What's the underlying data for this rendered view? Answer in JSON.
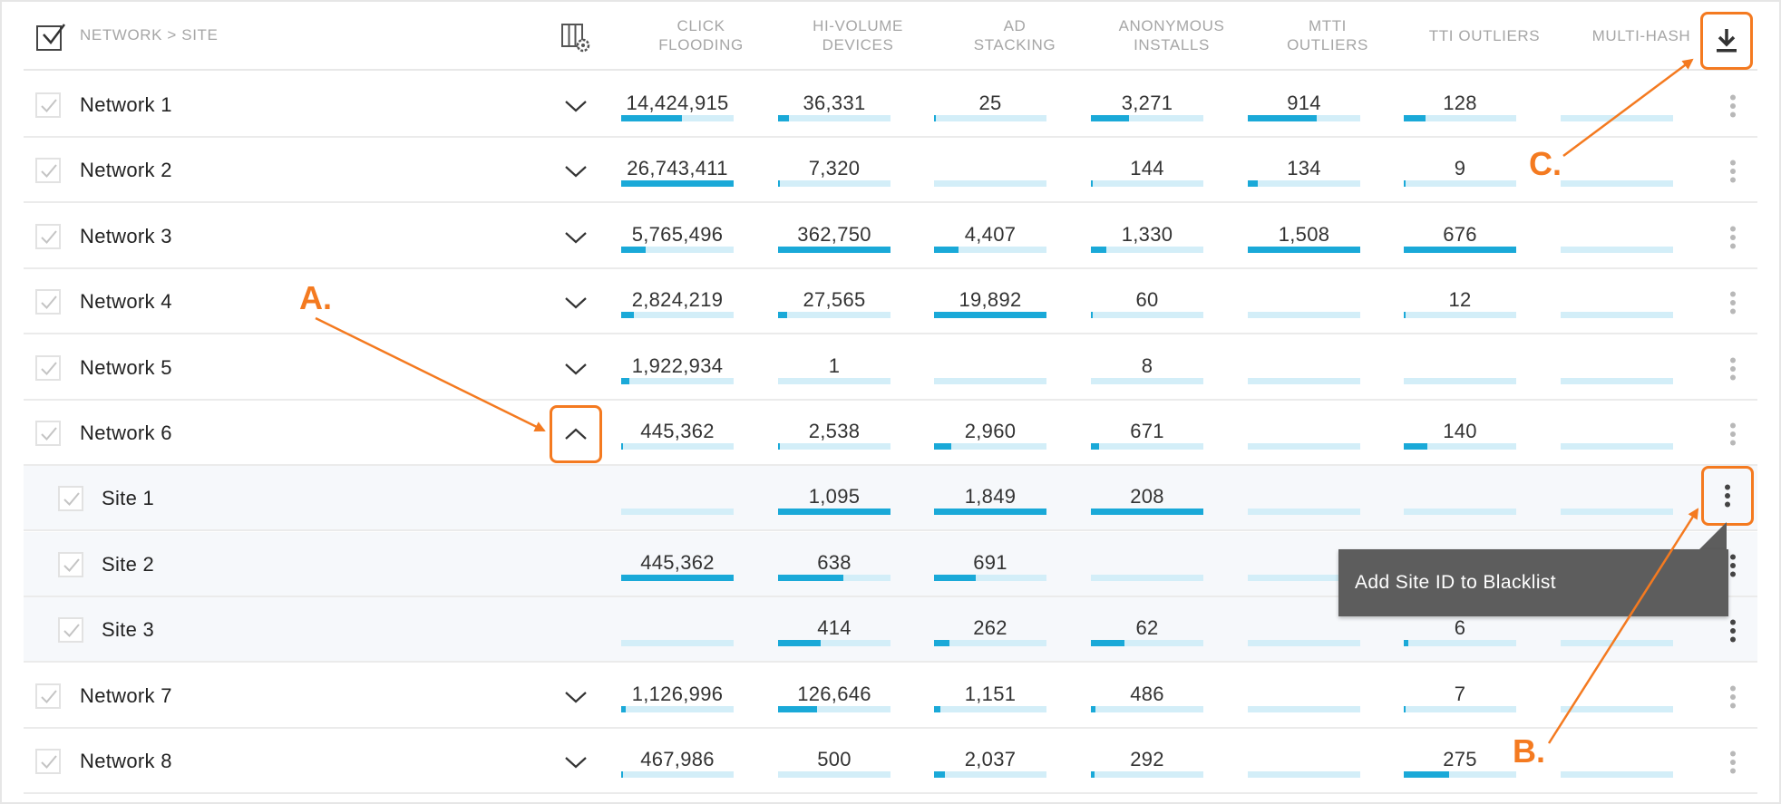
{
  "header": {
    "title": "NETWORK > SITE",
    "columns": [
      {
        "label": "CLICK\nFLOODING"
      },
      {
        "label": "HI-VOLUME\nDEVICES"
      },
      {
        "label": "AD\nSTACKING"
      },
      {
        "label": "ANONYMOUS\nINSTALLS"
      },
      {
        "label": "MTTI\nOUTLIERS"
      },
      {
        "label": "TTI OUTLIERS"
      },
      {
        "label": "MULTI-HASH"
      }
    ]
  },
  "icons": {
    "header_checkbox": "checkbox-checked-icon",
    "column_settings": "column-settings-icon",
    "download": "download-icon",
    "row_menu": "kebab-menu-icon",
    "expand": "chevron-down-icon",
    "collapse": "chevron-up-icon"
  },
  "colors": {
    "bar_fill": "#1aa9d8",
    "bar_track": "#d3eef8",
    "annotation": "#f47a20",
    "tooltip_bg": "#5d5d5d"
  },
  "rows": [
    {
      "name": "Network 1",
      "type": "network",
      "expanded": false,
      "cells": [
        {
          "value": "14,424,915",
          "fill": 0.54
        },
        {
          "value": "36,331",
          "fill": 0.1
        },
        {
          "value": "25",
          "fill": 0.01
        },
        {
          "value": "3,271",
          "fill": 0.34
        },
        {
          "value": "914",
          "fill": 0.61
        },
        {
          "value": "128",
          "fill": 0.19
        },
        {
          "value": "",
          "fill": 0
        }
      ]
    },
    {
      "name": "Network 2",
      "type": "network",
      "expanded": false,
      "cells": [
        {
          "value": "26,743,411",
          "fill": 1.0
        },
        {
          "value": "7,320",
          "fill": 0.02
        },
        {
          "value": "",
          "fill": 0
        },
        {
          "value": "144",
          "fill": 0.01
        },
        {
          "value": "134",
          "fill": 0.09
        },
        {
          "value": "9",
          "fill": 0.01
        },
        {
          "value": "",
          "fill": 0
        }
      ]
    },
    {
      "name": "Network 3",
      "type": "network",
      "expanded": false,
      "cells": [
        {
          "value": "5,765,496",
          "fill": 0.22
        },
        {
          "value": "362,750",
          "fill": 1.0
        },
        {
          "value": "4,407",
          "fill": 0.22
        },
        {
          "value": "1,330",
          "fill": 0.14
        },
        {
          "value": "1,508",
          "fill": 1.0
        },
        {
          "value": "676",
          "fill": 1.0
        },
        {
          "value": "",
          "fill": 0
        }
      ]
    },
    {
      "name": "Network 4",
      "type": "network",
      "expanded": false,
      "cells": [
        {
          "value": "2,824,219",
          "fill": 0.11
        },
        {
          "value": "27,565",
          "fill": 0.08
        },
        {
          "value": "19,892",
          "fill": 1.0
        },
        {
          "value": "60",
          "fill": 0.01
        },
        {
          "value": "",
          "fill": 0
        },
        {
          "value": "12",
          "fill": 0.02
        },
        {
          "value": "",
          "fill": 0
        }
      ]
    },
    {
      "name": "Network 5",
      "type": "network",
      "expanded": false,
      "cells": [
        {
          "value": "1,922,934",
          "fill": 0.07
        },
        {
          "value": "1",
          "fill": 0
        },
        {
          "value": "",
          "fill": 0
        },
        {
          "value": "8",
          "fill": 0
        },
        {
          "value": "",
          "fill": 0
        },
        {
          "value": "",
          "fill": 0
        },
        {
          "value": "",
          "fill": 0
        }
      ]
    },
    {
      "name": "Network 6",
      "type": "network",
      "expanded": true,
      "cells": [
        {
          "value": "445,362",
          "fill": 0.02
        },
        {
          "value": "2,538",
          "fill": 0.01
        },
        {
          "value": "2,960",
          "fill": 0.15
        },
        {
          "value": "671",
          "fill": 0.07
        },
        {
          "value": "",
          "fill": 0
        },
        {
          "value": "140",
          "fill": 0.21
        },
        {
          "value": "",
          "fill": 0
        }
      ]
    },
    {
      "name": "Site 1",
      "type": "site",
      "cells": [
        {
          "value": "",
          "fill": 0
        },
        {
          "value": "1,095",
          "fill": 1.0
        },
        {
          "value": "1,849",
          "fill": 1.0
        },
        {
          "value": "208",
          "fill": 1.0
        },
        {
          "value": "",
          "fill": 0
        },
        {
          "value": "",
          "fill": 0
        },
        {
          "value": "",
          "fill": 0
        }
      ]
    },
    {
      "name": "Site 2",
      "type": "site",
      "cells": [
        {
          "value": "445,362",
          "fill": 1.0
        },
        {
          "value": "638",
          "fill": 0.58
        },
        {
          "value": "691",
          "fill": 0.37
        },
        {
          "value": "",
          "fill": 0
        },
        {
          "value": "",
          "fill": 0
        },
        {
          "value": "",
          "fill": 0
        },
        {
          "value": "",
          "fill": 0
        }
      ]
    },
    {
      "name": "Site 3",
      "type": "site",
      "cells": [
        {
          "value": "",
          "fill": 0
        },
        {
          "value": "414",
          "fill": 0.38
        },
        {
          "value": "262",
          "fill": 0.14
        },
        {
          "value": "62",
          "fill": 0.3
        },
        {
          "value": "",
          "fill": 0
        },
        {
          "value": "6",
          "fill": 0.04
        },
        {
          "value": "",
          "fill": 0
        }
      ]
    },
    {
      "name": "Network 7",
      "type": "network",
      "expanded": false,
      "cells": [
        {
          "value": "1,126,996",
          "fill": 0.04
        },
        {
          "value": "126,646",
          "fill": 0.35
        },
        {
          "value": "1,151",
          "fill": 0.06
        },
        {
          "value": "486",
          "fill": 0.04
        },
        {
          "value": "",
          "fill": 0
        },
        {
          "value": "7",
          "fill": 0.01
        },
        {
          "value": "",
          "fill": 0
        }
      ]
    },
    {
      "name": "Network 8",
      "type": "network",
      "expanded": false,
      "cells": [
        {
          "value": "467,986",
          "fill": 0.02
        },
        {
          "value": "500",
          "fill": 0
        },
        {
          "value": "2,037",
          "fill": 0.1
        },
        {
          "value": "292",
          "fill": 0.03
        },
        {
          "value": "",
          "fill": 0
        },
        {
          "value": "275",
          "fill": 0.4
        },
        {
          "value": "",
          "fill": 0
        }
      ]
    }
  ],
  "tooltip": {
    "text": "Add Site ID to Blacklist"
  },
  "annotations": {
    "a": "A.",
    "b": "B.",
    "c": "C."
  }
}
